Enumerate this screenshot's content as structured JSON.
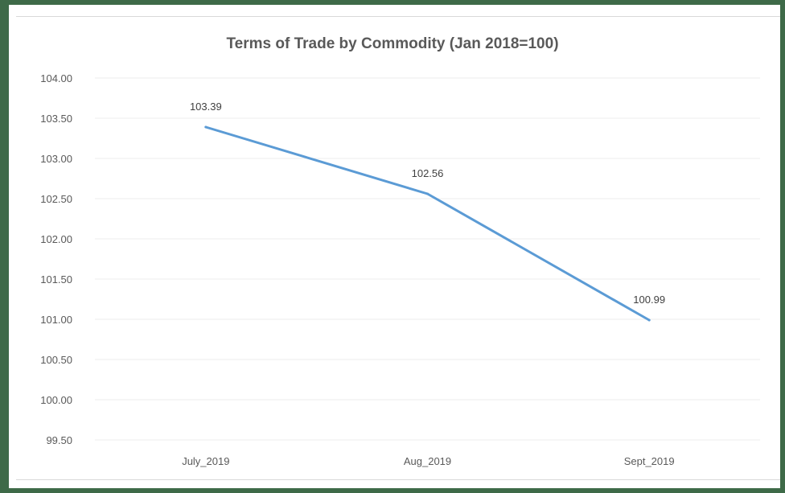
{
  "chart_data": {
    "type": "line",
    "title": "Terms of Trade by Commodity (Jan 2018=100)",
    "xlabel": "",
    "ylabel": "",
    "categories": [
      "July_2019",
      "Aug_2019",
      "Sept_2019"
    ],
    "series": [
      {
        "values": [
          103.39,
          102.56,
          100.99
        ]
      }
    ],
    "data_labels": [
      "103.39",
      "102.56",
      "100.99"
    ],
    "ylim": [
      99.5,
      104.0
    ],
    "yticks": [
      "104.00",
      "103.50",
      "103.00",
      "102.50",
      "102.00",
      "101.50",
      "101.00",
      "100.50",
      "100.00",
      "99.50"
    ],
    "grid": true,
    "legend": "none",
    "colors": {
      "line": "#5b9bd5",
      "frame": "#3e6a48",
      "gridline": "#eeeeee"
    }
  }
}
